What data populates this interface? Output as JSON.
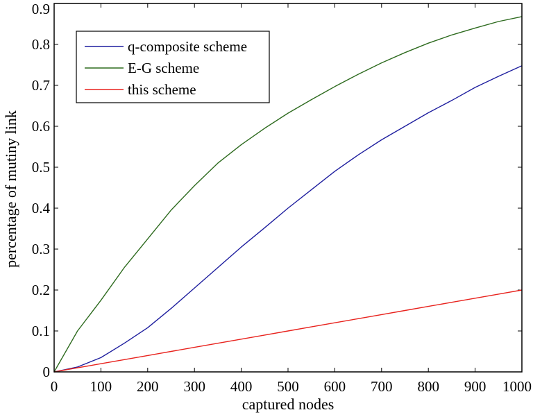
{
  "chart_data": {
    "type": "line",
    "title": "",
    "xlabel": "captured nodes",
    "ylabel": "percentage of mutiny link",
    "xlim": [
      0,
      1000
    ],
    "ylim": [
      0,
      0.9
    ],
    "xticks": [
      "0",
      "100",
      "200",
      "300",
      "400",
      "500",
      "600",
      "700",
      "800",
      "900",
      "1000"
    ],
    "yticks": [
      "0",
      "0.1",
      "0.2",
      "0.3",
      "0.4",
      "0.5",
      "0.6",
      "0.7",
      "0.8",
      "0.9"
    ],
    "grid": false,
    "legend_position": "top-left",
    "x": [
      0,
      50,
      100,
      150,
      200,
      250,
      300,
      350,
      400,
      450,
      500,
      550,
      600,
      650,
      700,
      750,
      800,
      850,
      900,
      950,
      1000
    ],
    "series": [
      {
        "name": "q-composite scheme",
        "color": "#1f1f9f",
        "values": [
          0,
          0.012,
          0.035,
          0.07,
          0.108,
          0.155,
          0.205,
          0.255,
          0.305,
          0.352,
          0.4,
          0.445,
          0.49,
          0.53,
          0.567,
          0.6,
          0.633,
          0.663,
          0.695,
          0.722,
          0.748
        ]
      },
      {
        "name": "E-G scheme",
        "color": "#2e6b1f",
        "values": [
          0,
          0.1,
          0.175,
          0.255,
          0.325,
          0.395,
          0.455,
          0.51,
          0.555,
          0.595,
          0.632,
          0.665,
          0.697,
          0.727,
          0.755,
          0.78,
          0.803,
          0.823,
          0.84,
          0.856,
          0.868
        ]
      },
      {
        "name": "this scheme",
        "color": "#e8231e",
        "values": [
          0,
          0.01,
          0.02,
          0.03,
          0.04,
          0.05,
          0.06,
          0.07,
          0.08,
          0.09,
          0.1,
          0.11,
          0.12,
          0.13,
          0.14,
          0.15,
          0.16,
          0.17,
          0.18,
          0.19,
          0.2
        ]
      }
    ]
  }
}
